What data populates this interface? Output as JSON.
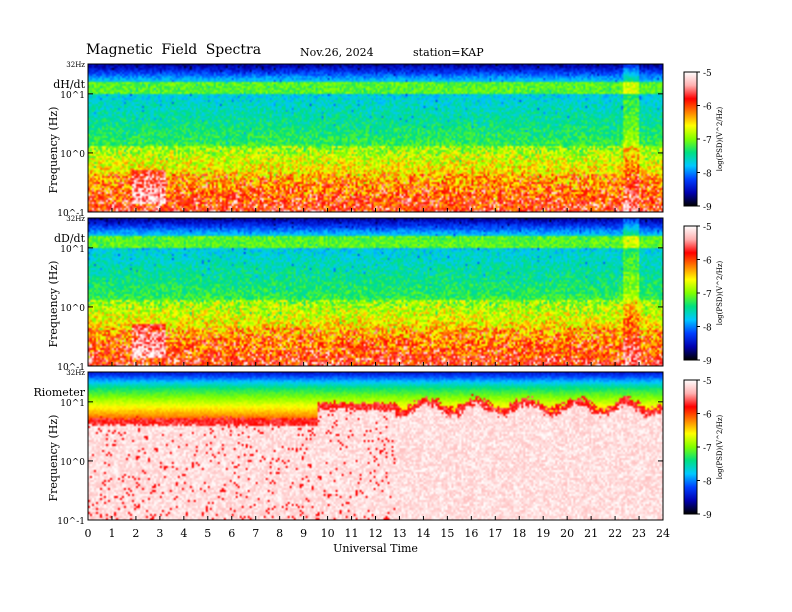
{
  "header": {
    "title": "Magnetic  Field  Spectra",
    "date": "Nov.26, 2024",
    "station": "station=KAP"
  },
  "colorbar": {
    "ticks": [
      "-5",
      "-6",
      "-7",
      "-8",
      "-9"
    ],
    "label": "log(PSD)(V^2/Hz)"
  },
  "colors": {
    "scale": [
      "#000000",
      "#0000b0",
      "#0040ff",
      "#00c8ff",
      "#00e080",
      "#80ff00",
      "#ffff00",
      "#ff8000",
      "#ff0000",
      "#ffb0b0",
      "#ffffff"
    ]
  },
  "chart_data": [
    {
      "type": "heatmap",
      "panel_label": "dH/dt",
      "ylabel": "Frequency (Hz)",
      "y_ticks": [
        "10^-1",
        "10^0",
        "10^1"
      ],
      "y_top_label": "32Hz",
      "xlim": [
        0,
        24
      ],
      "clim": [
        -9,
        -5
      ],
      "colorbar_label": "log(PSD)(V^2/Hz)"
    },
    {
      "type": "heatmap",
      "panel_label": "dD/dt",
      "ylabel": "Frequency (Hz)",
      "y_ticks": [
        "10^-1",
        "10^0",
        "10^1"
      ],
      "y_top_label": "32Hz",
      "xlim": [
        0,
        24
      ],
      "clim": [
        -9,
        -5
      ],
      "colorbar_label": "log(PSD)(V^2/Hz)"
    },
    {
      "type": "heatmap",
      "panel_label": "Riometer",
      "ylabel": "Frequency (Hz)",
      "y_ticks": [
        "10^-1",
        "10^0",
        "10^1"
      ],
      "y_top_label": "32Hz",
      "xlim": [
        0,
        24
      ],
      "x_ticks": [
        "0",
        "1",
        "2",
        "3",
        "4",
        "5",
        "6",
        "7",
        "8",
        "9",
        "10",
        "11",
        "12",
        "13",
        "14",
        "15",
        "16",
        "17",
        "18",
        "19",
        "20",
        "21",
        "22",
        "23",
        "24"
      ],
      "xlabel": "Universal Time",
      "clim": [
        -9,
        -5
      ],
      "colorbar_label": "log(PSD)(V^2/Hz)"
    }
  ]
}
